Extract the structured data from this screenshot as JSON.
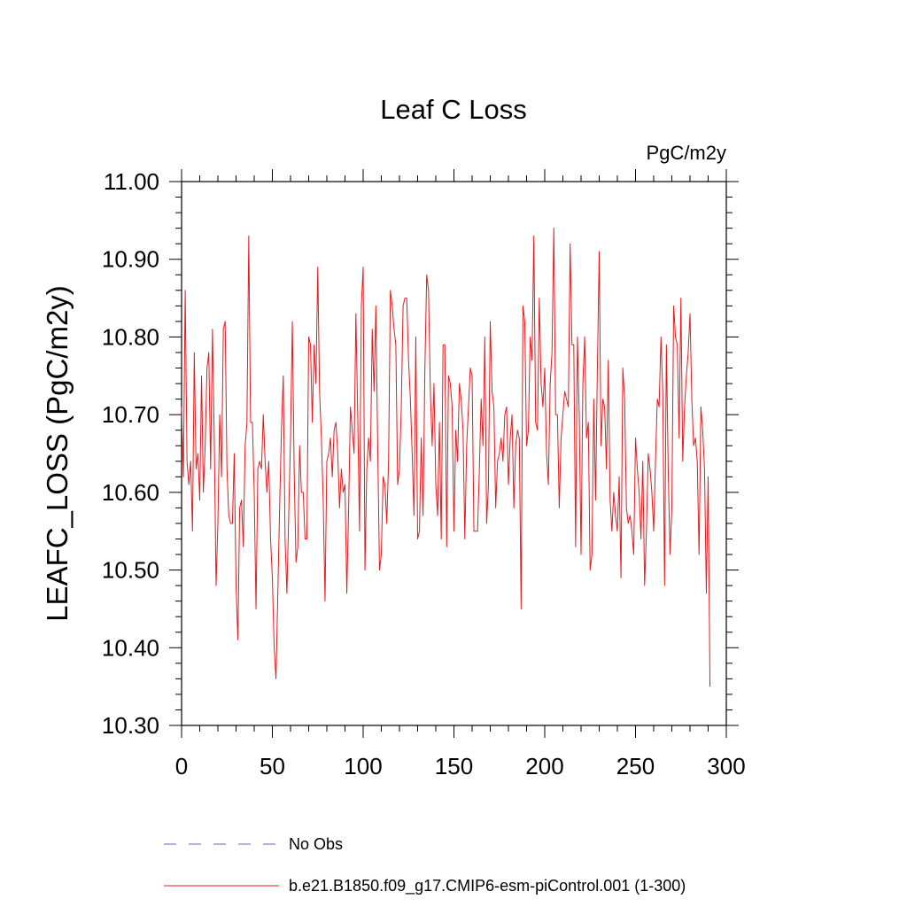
{
  "chart_data": {
    "type": "line",
    "title": "Leaf C Loss",
    "units_label": "PgC/m2y",
    "xlabel": "",
    "ylabel": "LEAFC_LOSS  (PgC/m2y)",
    "xlim": [
      0,
      300
    ],
    "ylim": [
      10.3,
      11.0
    ],
    "xticks": [
      0,
      50,
      100,
      150,
      200,
      250,
      300
    ],
    "xtick_labels": [
      "0",
      "50",
      "100",
      "150",
      "200",
      "250",
      "300"
    ],
    "yticks": [
      10.3,
      10.4,
      10.5,
      10.6,
      10.7,
      10.8,
      10.9,
      11.0
    ],
    "ytick_labels": [
      "10.30",
      "10.40",
      "10.50",
      "10.60",
      "10.70",
      "10.80",
      "10.90",
      "11.00"
    ],
    "grid": false,
    "legend_position": "bottom",
    "legend": [
      {
        "name": "No Obs",
        "color": "#6f63b5",
        "style": "dashed"
      },
      {
        "name": "b.e21.B1850.f09_g17.CMIP6-esm-piControl.001 (1-300)",
        "color": "#e8191d",
        "style": "solid"
      }
    ],
    "series": [
      {
        "name": "b.e21.B1850.f09_g17.CMIP6-esm-piControl.001 (1-300)",
        "color": "#e8191d",
        "x_start": 0,
        "x_step": 1,
        "values": [
          10.71,
          10.62,
          10.86,
          10.64,
          10.61,
          10.64,
          10.55,
          10.78,
          10.63,
          10.65,
          10.59,
          10.75,
          10.6,
          10.66,
          10.76,
          10.78,
          10.63,
          10.81,
          10.67,
          10.48,
          10.56,
          10.7,
          10.62,
          10.81,
          10.82,
          10.63,
          10.57,
          10.56,
          10.56,
          10.65,
          10.48,
          10.41,
          10.58,
          10.59,
          10.53,
          10.66,
          10.69,
          10.93,
          10.69,
          10.69,
          10.6,
          10.45,
          10.63,
          10.64,
          10.63,
          10.7,
          10.64,
          10.6,
          10.64,
          10.54,
          10.49,
          10.4,
          10.36,
          10.47,
          10.58,
          10.68,
          10.75,
          10.54,
          10.47,
          10.57,
          10.67,
          10.82,
          10.63,
          10.51,
          10.53,
          10.66,
          10.6,
          10.6,
          10.54,
          10.54,
          10.8,
          10.79,
          10.69,
          10.79,
          10.74,
          10.89,
          10.73,
          10.67,
          10.59,
          10.46,
          10.64,
          10.65,
          10.67,
          10.62,
          10.68,
          10.69,
          10.65,
          10.58,
          10.63,
          10.6,
          10.61,
          10.47,
          10.58,
          10.71,
          10.68,
          10.65,
          10.83,
          10.7,
          10.55,
          10.84,
          10.89,
          10.5,
          10.63,
          10.67,
          10.64,
          10.81,
          10.73,
          10.84,
          10.66,
          10.5,
          10.52,
          10.62,
          10.61,
          10.56,
          10.64,
          10.86,
          10.84,
          10.81,
          10.79,
          10.61,
          10.63,
          10.71,
          10.84,
          10.85,
          10.85,
          10.77,
          10.72,
          10.65,
          10.57,
          10.8,
          10.54,
          10.55,
          10.67,
          10.57,
          10.76,
          10.88,
          10.86,
          10.73,
          10.66,
          10.74,
          10.61,
          10.57,
          10.69,
          10.54,
          10.79,
          10.79,
          10.53,
          10.75,
          10.74,
          10.71,
          10.55,
          10.68,
          10.64,
          10.74,
          10.72,
          10.68,
          10.54,
          10.66,
          10.71,
          10.76,
          10.75,
          10.55,
          10.55,
          10.55,
          10.63,
          10.72,
          10.66,
          10.8,
          10.56,
          10.61,
          10.82,
          10.73,
          10.71,
          10.58,
          10.64,
          10.65,
          10.67,
          10.64,
          10.7,
          10.71,
          10.61,
          10.67,
          10.7,
          10.58,
          10.66,
          10.68,
          10.67,
          10.45,
          10.84,
          10.82,
          10.66,
          10.68,
          10.8,
          10.77,
          10.93,
          10.69,
          10.68,
          10.85,
          10.74,
          10.71,
          10.76,
          10.65,
          10.61,
          10.74,
          10.78,
          10.94,
          10.7,
          10.7,
          10.58,
          10.67,
          10.7,
          10.73,
          10.72,
          10.71,
          10.92,
          10.79,
          10.79,
          10.53,
          10.8,
          10.7,
          10.52,
          10.74,
          10.8,
          10.67,
          10.69,
          10.5,
          10.52,
          10.72,
          10.59,
          10.76,
          10.91,
          10.66,
          10.72,
          10.71,
          10.63,
          10.77,
          10.59,
          10.55,
          10.6,
          10.57,
          10.55,
          10.62,
          10.49,
          10.76,
          10.72,
          10.58,
          10.56,
          10.57,
          10.55,
          10.52,
          10.67,
          10.63,
          10.6,
          10.54,
          10.64,
          10.48,
          10.55,
          10.65,
          10.63,
          10.6,
          10.55,
          10.64,
          10.72,
          10.71,
          10.8,
          10.73,
          10.48,
          10.79,
          10.63,
          10.52,
          10.58,
          10.84,
          10.8,
          10.79,
          10.67,
          10.85,
          10.64,
          10.71,
          10.75,
          10.78,
          10.83,
          10.72,
          10.66,
          10.67,
          10.64,
          10.52,
          10.71,
          10.68,
          10.63,
          10.47,
          10.62,
          10.35
        ]
      }
    ]
  }
}
